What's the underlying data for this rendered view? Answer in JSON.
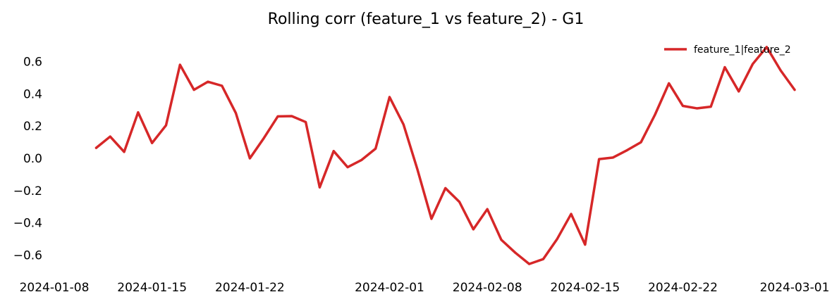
{
  "chart_data": {
    "type": "line",
    "title": "Rolling corr (feature_1 vs feature_2) - G1",
    "xlabel": "",
    "ylabel": "",
    "grid": false,
    "legend_position": "top-right",
    "x_axis": {
      "type": "date",
      "range": [
        "2024-01-08",
        "2024-03-01"
      ],
      "ticks": [
        "2024-01-08",
        "2024-01-15",
        "2024-01-22",
        "2024-02-01",
        "2024-02-08",
        "2024-02-15",
        "2024-02-22",
        "2024-03-01"
      ]
    },
    "y_axis": {
      "range": [
        -0.72,
        0.72
      ],
      "ticks": [
        -0.6,
        -0.4,
        -0.2,
        0.0,
        0.2,
        0.4,
        0.6
      ],
      "tick_labels": [
        "−0.6",
        "−0.4",
        "−0.2",
        "0.0",
        "0.2",
        "0.4",
        "0.6"
      ]
    },
    "series": [
      {
        "name": "feature_1|feature_2",
        "color": "#d62728",
        "x": [
          "2024-01-11",
          "2024-01-12",
          "2024-01-13",
          "2024-01-14",
          "2024-01-15",
          "2024-01-16",
          "2024-01-17",
          "2024-01-18",
          "2024-01-19",
          "2024-01-20",
          "2024-01-21",
          "2024-01-22",
          "2024-01-23",
          "2024-01-24",
          "2024-01-25",
          "2024-01-26",
          "2024-01-27",
          "2024-01-28",
          "2024-01-29",
          "2024-01-30",
          "2024-01-31",
          "2024-02-01",
          "2024-02-02",
          "2024-02-03",
          "2024-02-04",
          "2024-02-05",
          "2024-02-06",
          "2024-02-07",
          "2024-02-08",
          "2024-02-09",
          "2024-02-10",
          "2024-02-11",
          "2024-02-12",
          "2024-02-13",
          "2024-02-14",
          "2024-02-15",
          "2024-02-16",
          "2024-02-17",
          "2024-02-18",
          "2024-02-19",
          "2024-02-20",
          "2024-02-21",
          "2024-02-22",
          "2024-02-23",
          "2024-02-24",
          "2024-02-25",
          "2024-02-26",
          "2024-02-27",
          "2024-02-28",
          "2024-02-29",
          "2024-03-01"
        ],
        "y": [
          0.065,
          0.135,
          0.04,
          0.285,
          0.095,
          0.205,
          0.58,
          0.425,
          0.475,
          0.45,
          0.28,
          0.0,
          0.125,
          0.26,
          0.262,
          0.225,
          -0.18,
          0.045,
          -0.055,
          -0.01,
          0.06,
          0.38,
          0.21,
          -0.07,
          -0.375,
          -0.185,
          -0.27,
          -0.44,
          -0.315,
          -0.505,
          -0.585,
          -0.655,
          -0.625,
          -0.5,
          -0.345,
          -0.535,
          -0.005,
          0.005,
          0.05,
          0.1,
          0.27,
          0.465,
          0.325,
          0.31,
          0.32,
          0.565,
          0.415,
          0.585,
          0.69,
          0.545,
          0.425
        ]
      }
    ]
  }
}
